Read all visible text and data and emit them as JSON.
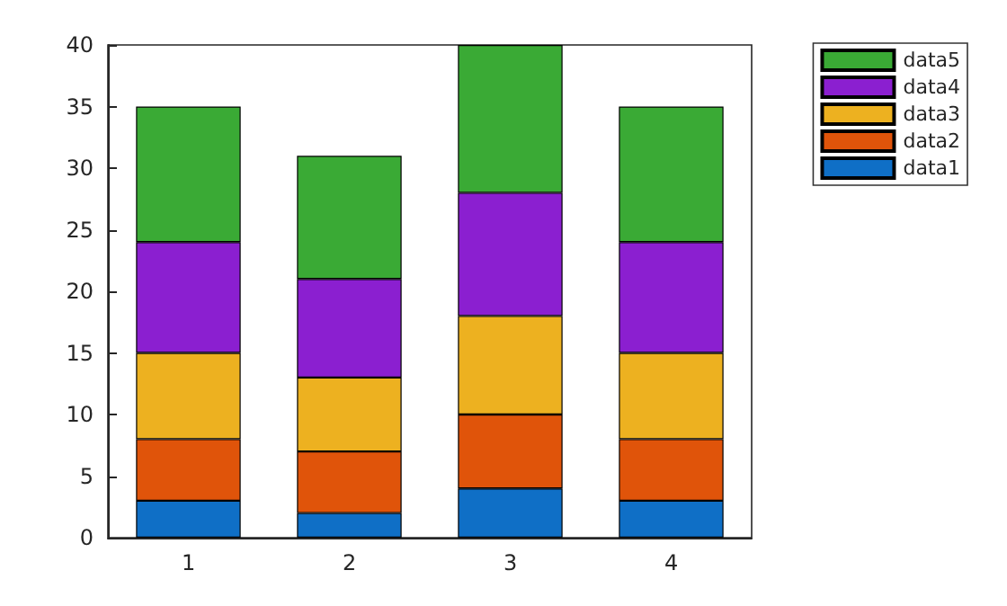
{
  "chart_data": {
    "type": "bar",
    "stacked": true,
    "categories": [
      "1",
      "2",
      "3",
      "4"
    ],
    "series": [
      {
        "name": "data1",
        "color": "#0f6fc6",
        "values": [
          3,
          2,
          4,
          3
        ]
      },
      {
        "name": "data2",
        "color": "#e0540a",
        "values": [
          5,
          5,
          6,
          5
        ]
      },
      {
        "name": "data3",
        "color": "#edb120",
        "values": [
          7,
          6,
          8,
          7
        ]
      },
      {
        "name": "data4",
        "color": "#8b1fd0",
        "values": [
          9,
          8,
          10,
          9
        ]
      },
      {
        "name": "data5",
        "color": "#3aaa35",
        "values": [
          11,
          10,
          12,
          11
        ]
      }
    ],
    "ylim": [
      0,
      40
    ],
    "yticks": [
      0,
      5,
      10,
      15,
      20,
      25,
      30,
      35,
      40
    ],
    "grid": false,
    "legend": "top right"
  }
}
